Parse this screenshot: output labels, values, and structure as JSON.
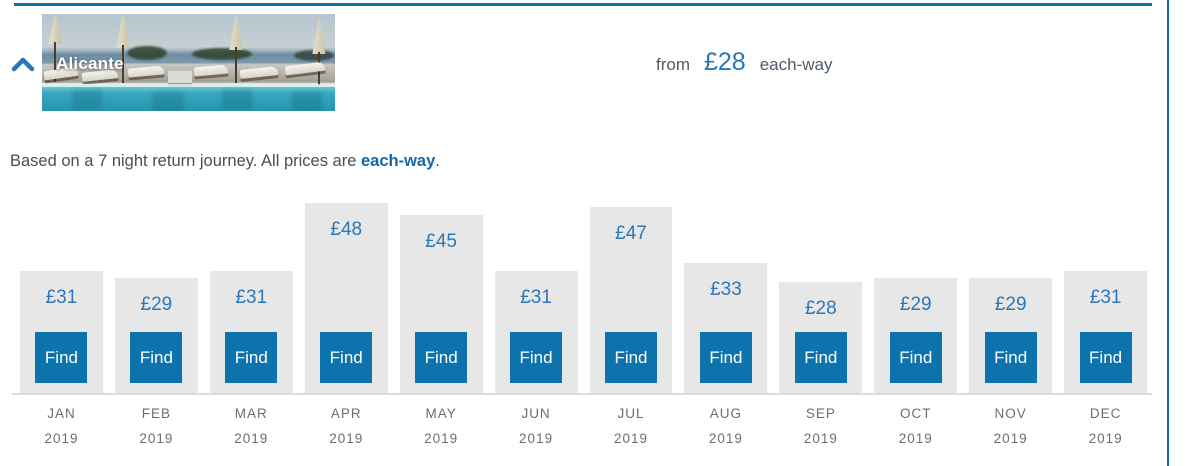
{
  "panel": {
    "destination": "Alicante",
    "collapse_icon": "chevron-up-icon",
    "fare_summary": {
      "from_label": "from",
      "price": "£28",
      "unit_label": "each-way"
    }
  },
  "note": {
    "text_before": "Based on a 7 night return journey. All prices are ",
    "highlight": "each-way",
    "text_after": "."
  },
  "chart_data": {
    "type": "bar",
    "categories": [
      "JAN 2019",
      "FEB 2019",
      "MAR 2019",
      "APR 2019",
      "MAY 2019",
      "JUN 2019",
      "JUL 2019",
      "AUG 2019",
      "SEP 2019",
      "OCT 2019",
      "NOV 2019",
      "DEC 2019"
    ],
    "values": [
      31,
      29,
      31,
      48,
      45,
      31,
      47,
      33,
      28,
      29,
      29,
      31
    ],
    "currency": "£",
    "button_label": "Find",
    "ylim": [
      0,
      48
    ],
    "grid": false,
    "legend": false
  },
  "colors": {
    "accent_blue": "#0d73ad",
    "frame_blue": "#0c70ad",
    "price_blue": "#2d76b8",
    "fare_blue": "#2579bb",
    "link_blue": "#1268ad",
    "bar_gray": "#e7e7e7",
    "text_gray": "#4d4d4d",
    "label_gray": "#6e6e6e"
  }
}
